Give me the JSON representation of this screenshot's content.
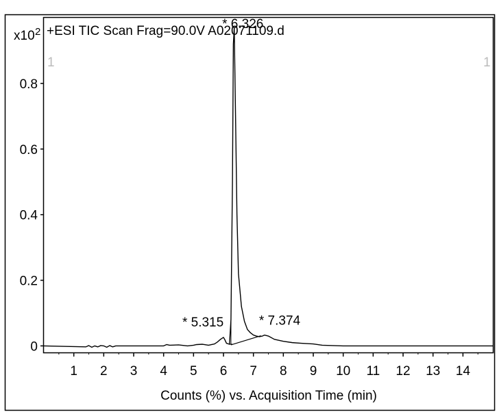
{
  "chart_data": {
    "type": "line",
    "title": "+ESI TIC Scan Frag=90.0V A02071109.d",
    "scale_prefix": "x10",
    "scale_exponent": "2",
    "xlabel": "Counts (%) vs. Acquisition Time (min)",
    "ylabel": "",
    "xlim": [
      0.0,
      15.0
    ],
    "ylim": [
      -0.02,
      1.0
    ],
    "x_ticks": [
      1,
      2,
      3,
      4,
      5,
      6,
      7,
      8,
      9,
      10,
      11,
      12,
      13,
      14
    ],
    "x_tick_labels": [
      "1",
      "2",
      "3",
      "4",
      "5",
      "6",
      "7",
      "8",
      "9",
      "10",
      "11",
      "12",
      "13",
      "14"
    ],
    "y_ticks": [
      0,
      0.2,
      0.4,
      0.6,
      0.8
    ],
    "y_tick_labels": [
      "0",
      "0.2",
      "0.4",
      "0.6",
      "0.8"
    ],
    "grid": false,
    "legend": "none",
    "series": [
      {
        "x": [
          0.0,
          1.4,
          1.5,
          1.6,
          1.7,
          1.8,
          1.9,
          2.0,
          2.1,
          2.2,
          2.3,
          2.4,
          3.0,
          3.5,
          4.0,
          4.1,
          4.2,
          4.5,
          4.8,
          5.0,
          5.1,
          5.3,
          5.5,
          5.7,
          5.8,
          5.9,
          6.0,
          6.05,
          6.1,
          6.2,
          6.25,
          6.3,
          6.33,
          6.36,
          6.4,
          6.45,
          6.5,
          6.6,
          6.7,
          6.8,
          6.9,
          7.0,
          7.1,
          7.2,
          7.3,
          7.37,
          7.5,
          7.7,
          8.0,
          8.3,
          8.6,
          9.0,
          9.3,
          10.0,
          11.0,
          12.0,
          13.0,
          14.0,
          15.0
        ],
        "y": [
          0.0,
          -0.003,
          0.001,
          -0.004,
          0.0,
          -0.003,
          0.001,
          0.0,
          -0.004,
          0.001,
          -0.003,
          0.0,
          0.0,
          0.0,
          0.0,
          0.004,
          0.002,
          0.003,
          0.0,
          0.002,
          0.004,
          0.005,
          0.002,
          0.006,
          0.012,
          0.02,
          0.026,
          0.018,
          0.008,
          0.005,
          0.08,
          0.5,
          0.92,
          0.97,
          0.72,
          0.4,
          0.22,
          0.12,
          0.075,
          0.05,
          0.04,
          0.033,
          0.03,
          0.028,
          0.03,
          0.033,
          0.03,
          0.02,
          0.014,
          0.01,
          0.008,
          0.006,
          0.002,
          0.0,
          0.0,
          0.0,
          0.0,
          0.0,
          0.0
        ]
      }
    ],
    "baseline_segments": [
      {
        "x": [
          6.2,
          6.3
        ],
        "y": [
          0.005,
          0.005
        ]
      },
      {
        "x": [
          6.2,
          6.2
        ],
        "y": [
          0.005,
          0.005
        ]
      },
      {
        "x": [
          6.25,
          7.25
        ],
        "y": [
          0.003,
          0.031
        ]
      }
    ],
    "annotations": [
      {
        "text": "* 5.315",
        "x": 5.315,
        "y": 0.03
      },
      {
        "text": "* 6.326",
        "x": 6.326,
        "y": 0.96
      },
      {
        "text": "* 7.374",
        "x": 7.374,
        "y": 0.035
      }
    ],
    "edge_markers": [
      "1",
      "1"
    ]
  }
}
